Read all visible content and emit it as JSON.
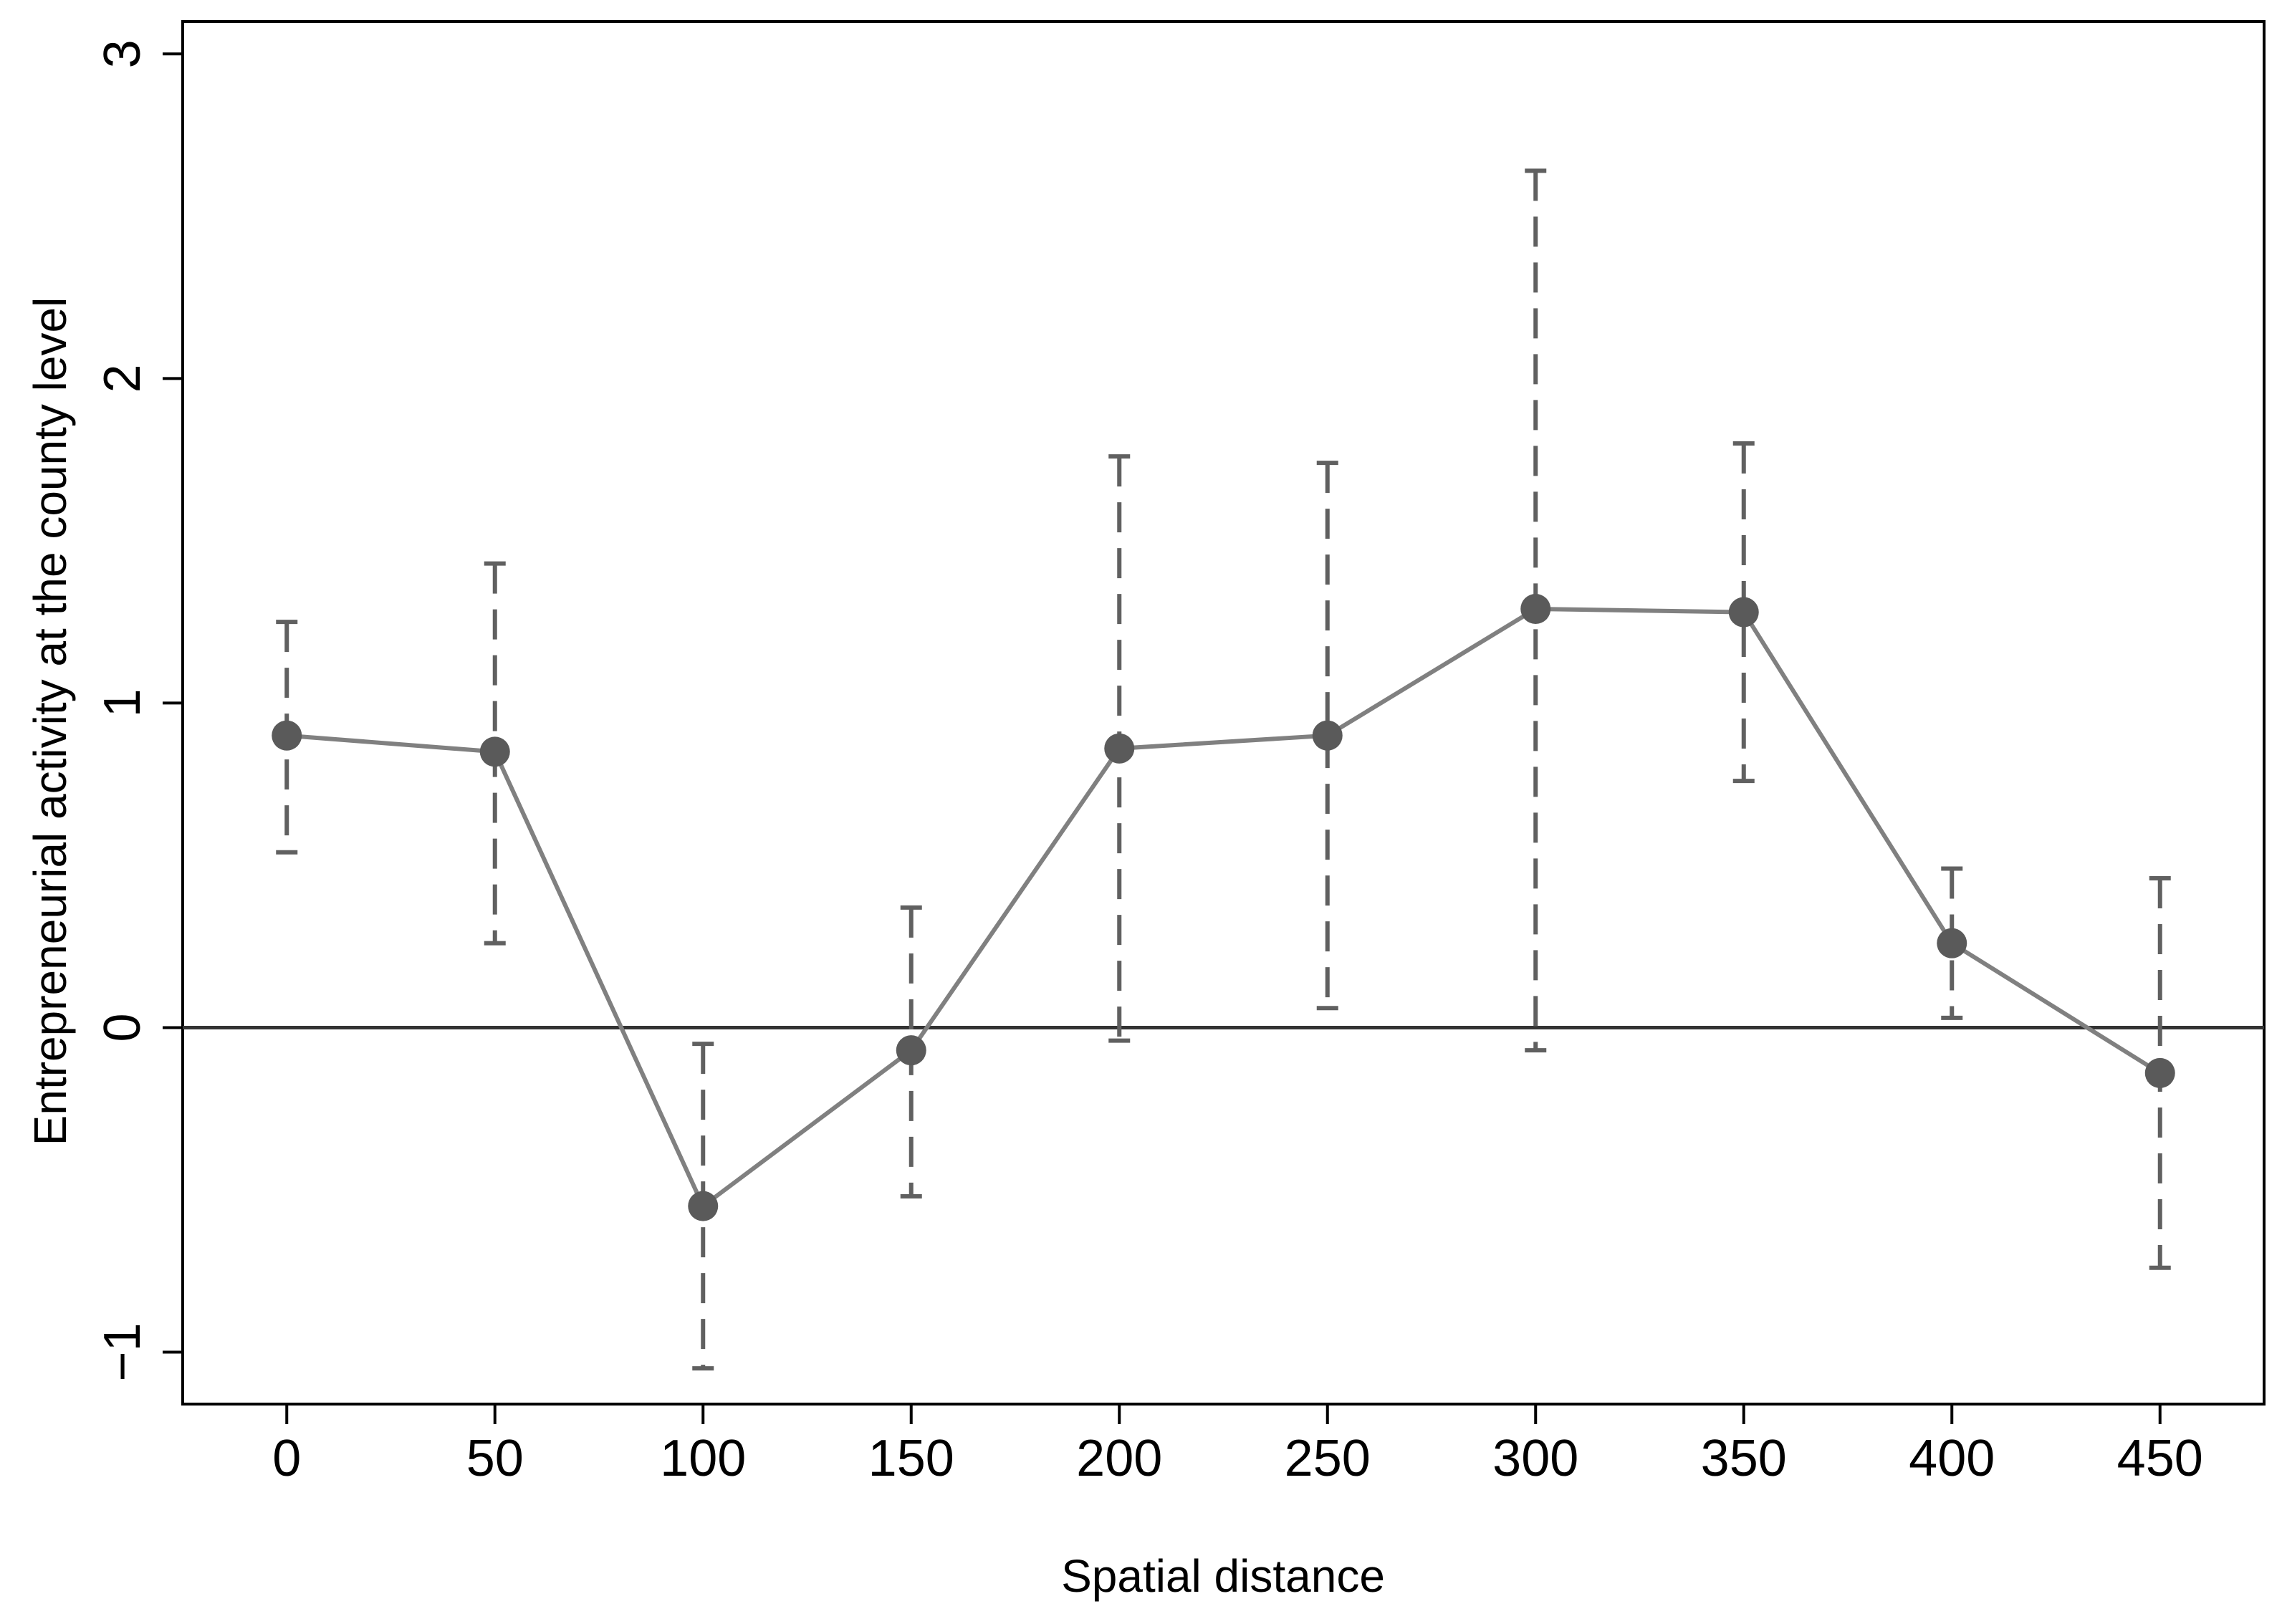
{
  "chart_data": {
    "type": "line",
    "title": "",
    "xlabel": "Spatial distance",
    "ylabel": "Entrepreneurial activity at the county level",
    "xlim": [
      -25,
      475
    ],
    "ylim": [
      -1.16,
      3.1
    ],
    "x_ticks": [
      0,
      50,
      100,
      150,
      200,
      250,
      300,
      350,
      400,
      450
    ],
    "y_ticks": [
      -1,
      0,
      1,
      2,
      3
    ],
    "y_tick_labels": [
      "−1",
      "0",
      "1",
      "2",
      "3"
    ],
    "reference_line_y": 0,
    "grid": false,
    "legend": "none",
    "series": [
      {
        "x": [
          0,
          50,
          100,
          150,
          200,
          250,
          300,
          350,
          400,
          450
        ],
        "y": [
          0.9,
          0.85,
          -0.55,
          -0.07,
          0.86,
          0.9,
          1.29,
          1.28,
          0.26,
          -0.14
        ],
        "ci_lower": [
          0.54,
          0.26,
          -1.05,
          -0.52,
          -0.04,
          0.06,
          -0.07,
          0.76,
          0.03,
          -0.74
        ],
        "ci_upper": [
          1.25,
          1.43,
          -0.05,
          0.37,
          1.76,
          1.74,
          2.64,
          1.8,
          0.49,
          0.46
        ]
      }
    ],
    "colors": {
      "line": "#808080",
      "marker": "#5a5a5a",
      "error_bar": "#606060",
      "axis": "#000000",
      "reference_line": "#333333"
    }
  }
}
